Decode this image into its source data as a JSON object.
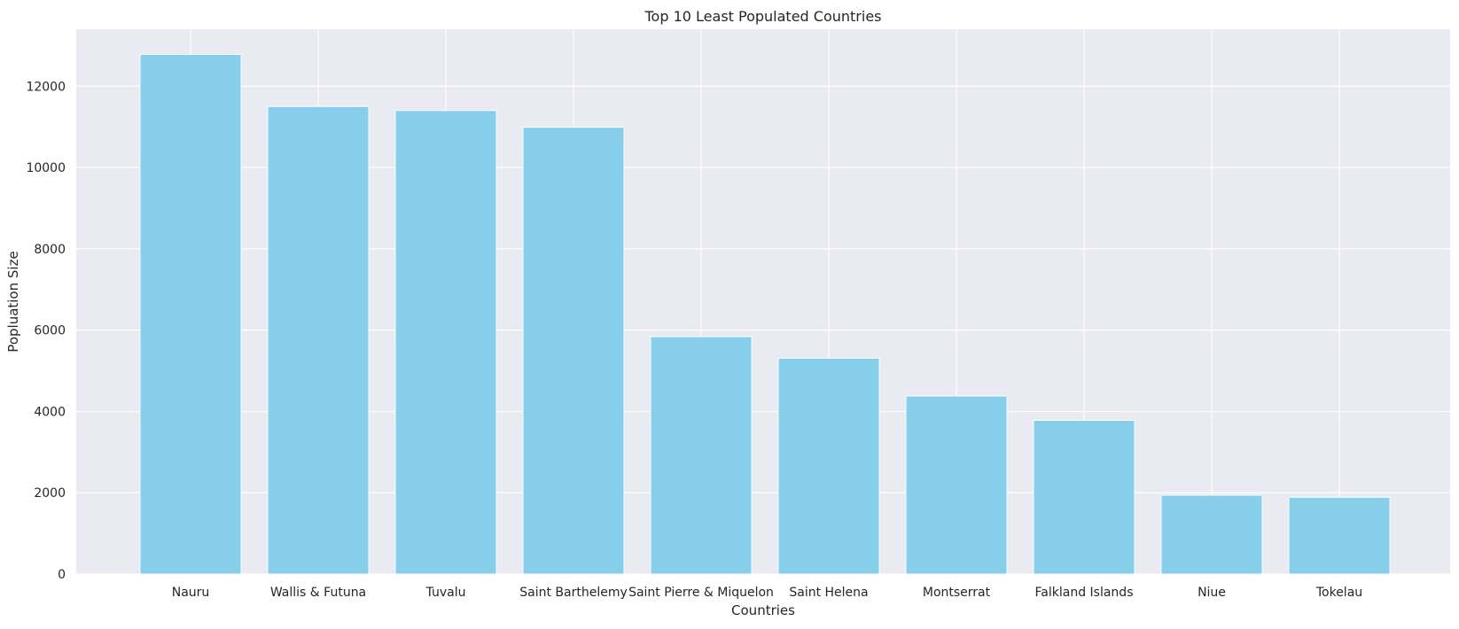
{
  "chart_data": {
    "type": "bar",
    "title": "Top 10 Least Populated Countries",
    "xlabel": "Countries",
    "ylabel": "Popluation Size",
    "categories": [
      "Nauru",
      "Wallis & Futuna",
      "Tuvalu",
      "Saint Barthelemy",
      "Saint Pierre & Miquelon",
      "Saint Helena",
      "Montserrat",
      "Falkland Islands",
      "Niue",
      "Tokelau"
    ],
    "values": [
      12780,
      11500,
      11400,
      10990,
      5840,
      5310,
      4380,
      3780,
      1940,
      1890
    ],
    "ylim": [
      0,
      13400
    ],
    "yticks": [
      0,
      2000,
      4000,
      6000,
      8000,
      10000,
      12000
    ],
    "bar_color": "#87ceeb",
    "background_color": "#eaeaf2",
    "grid_color": "#ffffff",
    "grid": true
  }
}
